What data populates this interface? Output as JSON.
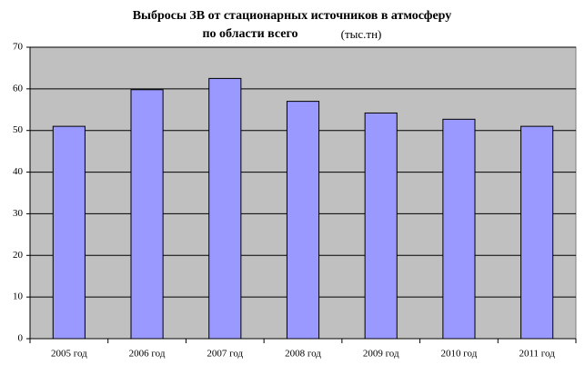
{
  "chart_data": {
    "type": "bar",
    "title": "Выбросы ЗВ от стационарных источников в атмосферу",
    "subtitle": "по области всего",
    "unit_label": "(тыс.тн)",
    "categories": [
      "2005 год",
      "2006 год",
      "2007 год",
      "2008 год",
      "2009 год",
      "2010 год",
      "2011 год"
    ],
    "values": [
      51,
      59.8,
      62.5,
      57,
      54.2,
      52.7,
      51
    ],
    "color": "#9999ff",
    "ylim": [
      0,
      70
    ],
    "yticks": [
      0,
      10,
      20,
      30,
      40,
      50,
      60,
      70
    ],
    "grid": true
  }
}
